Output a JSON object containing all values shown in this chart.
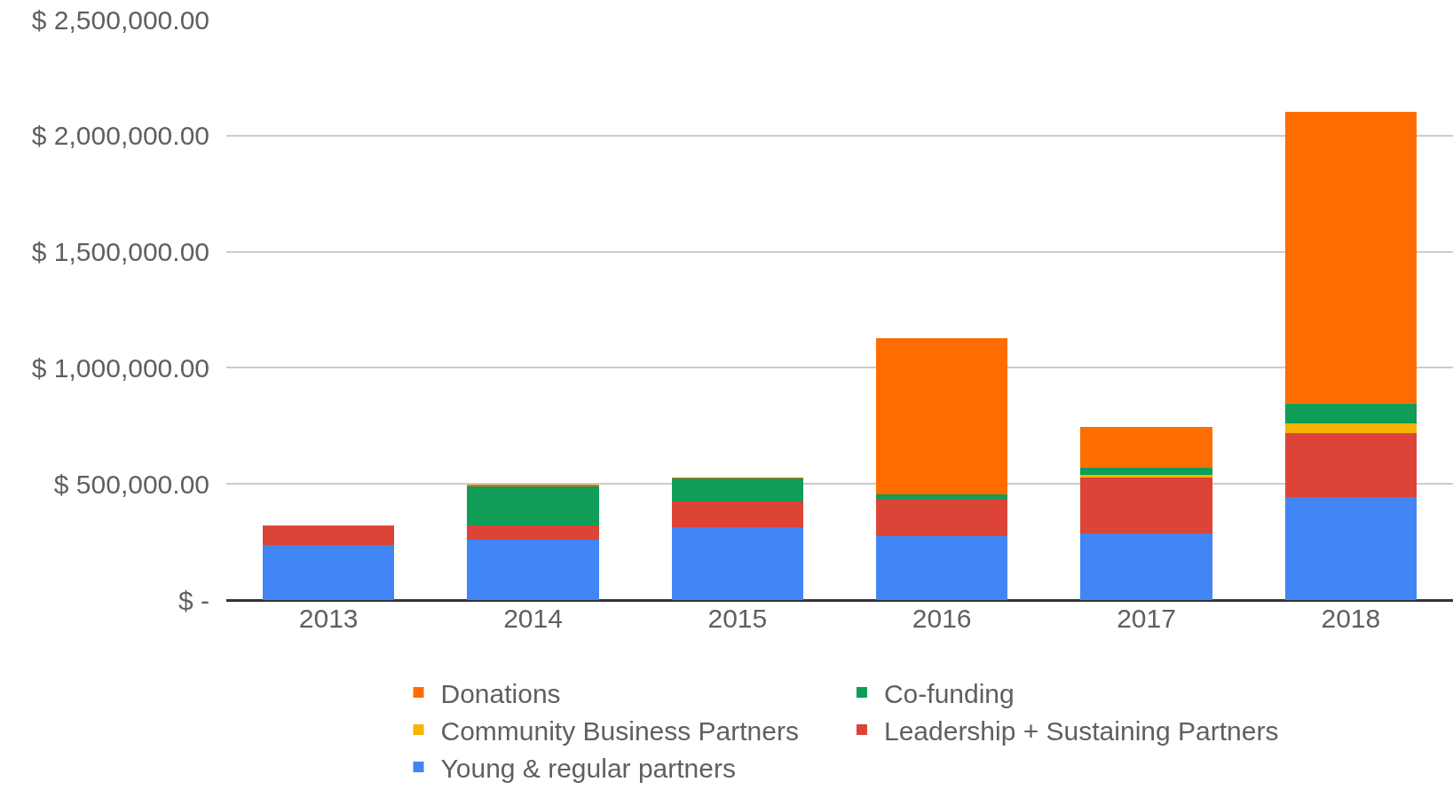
{
  "chart_data": {
    "type": "bar",
    "stacked": true,
    "categories": [
      "2013",
      "2014",
      "2015",
      "2016",
      "2017",
      "2018"
    ],
    "series": [
      {
        "name": "Young & regular partners",
        "color": "#4285f4",
        "values": [
          237000,
          260000,
          312000,
          277000,
          286000,
          445000
        ]
      },
      {
        "name": "Leadership + Sustaining Partners",
        "color": "#db4437",
        "values": [
          83000,
          60000,
          113000,
          158000,
          242000,
          272000
        ]
      },
      {
        "name": "Community Business Partners",
        "color": "#f4b400",
        "values": [
          null,
          null,
          null,
          null,
          11000,
          42000
        ]
      },
      {
        "name": "Co-funding",
        "color": "#0f9d58",
        "values": [
          null,
          169000,
          98000,
          21000,
          32000,
          86000
        ]
      },
      {
        "name": "Donations",
        "color": "#ff6d00",
        "values": [
          null,
          8000,
          6000,
          670000,
          176000,
          1259000
        ]
      }
    ],
    "ylim": [
      0,
      2500000
    ],
    "yticks": [
      {
        "value": 0,
        "label": "$ -"
      },
      {
        "value": 500000,
        "label": "$ 500,000.00"
      },
      {
        "value": 1000000,
        "label": "$ 1,000,000.00"
      },
      {
        "value": 1500000,
        "label": "$ 1,500,000.00"
      },
      {
        "value": 2000000,
        "label": "$ 2,000,000.00"
      },
      {
        "value": 2500000,
        "label": "$ 2,500,000.00"
      }
    ],
    "grid": "y",
    "legend": "bottom"
  }
}
